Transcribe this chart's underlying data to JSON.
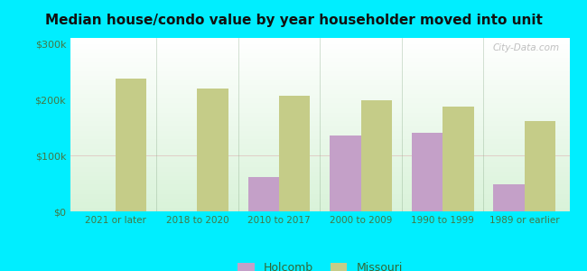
{
  "title": "Median house/condo value by year householder moved into unit",
  "categories": [
    "2021 or later",
    "2018 to 2020",
    "2010 to 2017",
    "2000 to 2009",
    "1990 to 1999",
    "1989 or earlier"
  ],
  "holcomb_values": [
    null,
    null,
    62000,
    135000,
    140000,
    48000
  ],
  "missouri_values": [
    237000,
    220000,
    207000,
    198000,
    187000,
    162000
  ],
  "holcomb_color": "#c4a0c8",
  "missouri_color": "#c5cc88",
  "background_color": "#00eeff",
  "yticks": [
    0,
    100000,
    200000,
    300000
  ],
  "ytick_labels": [
    "$0",
    "$100k",
    "$200k",
    "$300k"
  ],
  "ylim": [
    0,
    310000
  ],
  "legend_holcomb": "Holcomb",
  "legend_missouri": "Missouri",
  "bar_width": 0.38,
  "watermark": "City-Data.com"
}
